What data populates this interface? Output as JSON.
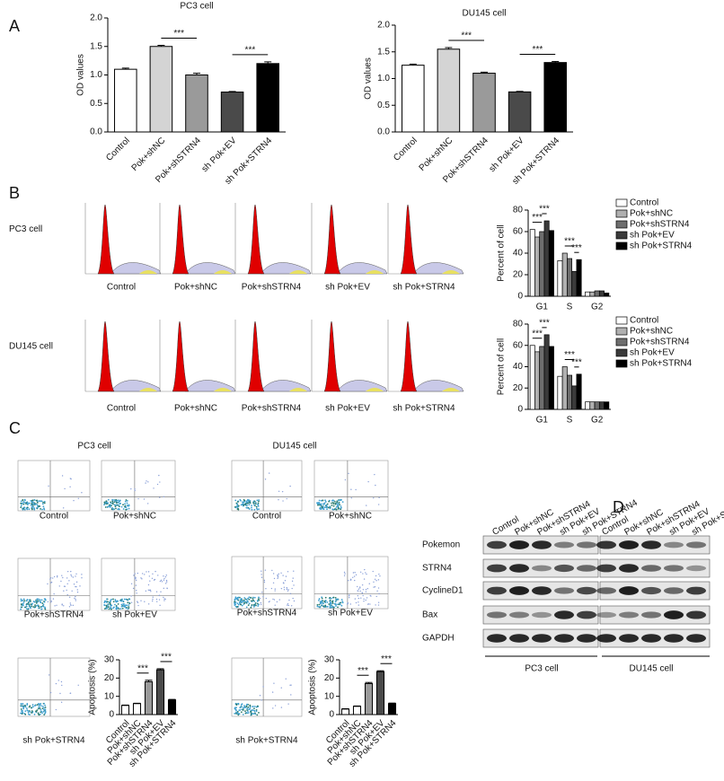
{
  "panels": [
    "A",
    "B",
    "C",
    "D"
  ],
  "chart_data": [
    {
      "type": "bar",
      "title": "PC3 cell",
      "y_label": "OD values",
      "categories": [
        "Control",
        "Pok+shNC",
        "Pok+shSTRN4",
        "sh Pok+EV",
        "sh Pok+STRN4"
      ],
      "values": [
        1.1,
        1.5,
        1.0,
        0.7,
        1.2
      ],
      "errors": [
        0.02,
        0.02,
        0.03,
        0.01,
        0.03
      ],
      "colors": [
        "#ffffff",
        "#d4d4d4",
        "#9a9a9a",
        "#4a4a4a",
        "#000000"
      ],
      "ylim": [
        0,
        2
      ],
      "yticks": [
        {
          "value": 0,
          "label": "0.0"
        },
        {
          "value": 0.5,
          "label": "0.5"
        },
        {
          "value": 1,
          "label": "1.0"
        },
        {
          "value": 1.5,
          "label": "1.5"
        },
        {
          "value": 2,
          "label": "2.0"
        }
      ],
      "annotations": [
        "***",
        "***"
      ]
    },
    {
      "type": "bar",
      "title": "DU145 cell",
      "y_label": "OD values",
      "categories": [
        "Control",
        "Pok+shNC",
        "Pok+shSTRN4",
        "sh Pok+EV",
        "sh Pok+STRN4"
      ],
      "values": [
        1.25,
        1.55,
        1.1,
        0.75,
        1.3
      ],
      "errors": [
        0.02,
        0.03,
        0.02,
        0.01,
        0.02
      ],
      "colors": [
        "#ffffff",
        "#d4d4d4",
        "#9a9a9a",
        "#4a4a4a",
        "#000000"
      ],
      "ylim": [
        0,
        2
      ],
      "yticks": [
        {
          "value": 0,
          "label": "0.0"
        },
        {
          "value": 0.5,
          "label": "0.5"
        },
        {
          "value": 1,
          "label": "1.0"
        },
        {
          "value": 1.5,
          "label": "1.5"
        },
        {
          "value": 2,
          "label": "2.0"
        }
      ],
      "annotations": [
        "***",
        "***"
      ]
    },
    {
      "type": "bar",
      "y_label": "Percent of cell",
      "categories": [
        "G1",
        "S",
        "G2"
      ],
      "series": [
        {
          "name": "Control",
          "color": "#ffffff",
          "values": [
            62,
            33,
            4
          ]
        },
        {
          "name": "Pok+shNC",
          "color": "#b0b0b0",
          "values": [
            55,
            40,
            4
          ]
        },
        {
          "name": "Pok+shSTRN4",
          "color": "#6e6e6e",
          "values": [
            60,
            35,
            5
          ]
        },
        {
          "name": "sh Pok+EV",
          "color": "#3a3a3a",
          "values": [
            70,
            23,
            5
          ]
        },
        {
          "name": "sh Pok+STRN4",
          "color": "#000000",
          "values": [
            61,
            34,
            3
          ]
        }
      ],
      "ylim": [
        0,
        80
      ],
      "yticks": [
        0,
        20,
        40,
        60,
        80
      ],
      "legend": "right",
      "annotations": [
        "***",
        "***",
        "***",
        "***"
      ]
    },
    {
      "type": "bar",
      "y_label": "Percent of cell",
      "categories": [
        "G1",
        "S",
        "G2"
      ],
      "series": [
        {
          "name": "Control",
          "color": "#ffffff",
          "values": [
            60,
            31,
            7
          ]
        },
        {
          "name": "Pok+shNC",
          "color": "#b0b0b0",
          "values": [
            54,
            40,
            7
          ]
        },
        {
          "name": "Pok+shSTRN4",
          "color": "#6e6e6e",
          "values": [
            59,
            32,
            7
          ]
        },
        {
          "name": "sh Pok+EV",
          "color": "#3a3a3a",
          "values": [
            70,
            22,
            7
          ]
        },
        {
          "name": "sh Pok+STRN4",
          "color": "#000000",
          "values": [
            59,
            33,
            7
          ]
        }
      ],
      "ylim": [
        0,
        80
      ],
      "yticks": [
        0,
        20,
        40,
        60,
        80
      ],
      "legend": "right",
      "annotations": [
        "***",
        "***",
        "***",
        "***"
      ]
    },
    {
      "type": "bar",
      "y_label": "Apoptosis (%)",
      "categories": [
        "Control",
        "Pok+shNC",
        "Pok+shSTRN4",
        "sh Pok+EV",
        "sh Pok+STRN4"
      ],
      "values": [
        5,
        6,
        18,
        24.5,
        8
      ],
      "errors": [
        0.2,
        0.2,
        0.8,
        0.6,
        0.3
      ],
      "colors": [
        "#ffffff",
        "#ffffff",
        "#9a9a9a",
        "#4a4a4a",
        "#000000"
      ],
      "ylim": [
        0,
        30
      ],
      "yticks": [
        0,
        10,
        20,
        30
      ],
      "annotations": [
        "***",
        "***"
      ]
    },
    {
      "type": "bar",
      "y_label": "Apoptosis (%)",
      "categories": [
        "Control",
        "Pok+shNC",
        "Pok+shSTRN4",
        "sh Pok+EV",
        "sh Pok+STRN4"
      ],
      "values": [
        3,
        4.5,
        17,
        23.5,
        6
      ],
      "errors": [
        0.2,
        0.2,
        0.6,
        0.5,
        0.3
      ],
      "colors": [
        "#ffffff",
        "#ffffff",
        "#9a9a9a",
        "#4a4a4a",
        "#000000"
      ],
      "ylim": [
        0,
        30
      ],
      "yticks": [
        0,
        10,
        20,
        30
      ],
      "annotations": [
        "***",
        "***"
      ]
    }
  ],
  "cell_cycle_histograms": {
    "rows": [
      "PC3 cell",
      "DU145 cell"
    ],
    "samples": [
      "Control",
      "Pok+shNC",
      "Pok+shSTRN4",
      "sh Pok+EV",
      "sh Pok+STRN4"
    ]
  },
  "apoptosis_plots": {
    "groups": [
      "PC3 cell",
      "DU145 cell"
    ],
    "samples": [
      "Control",
      "Pok+shNC",
      "Pok+shSTRN4",
      "sh Pok+EV",
      "sh Pok+STRN4"
    ]
  },
  "western_blot": {
    "lanes": [
      "Control",
      "Pok+shNC",
      "Pok+shSTRN4",
      "sh Pok+EV",
      "sh Pok+STRN4"
    ],
    "proteins": [
      "Pokemon",
      "STRN4",
      "CyclineD1",
      "Bax",
      "GAPDH"
    ],
    "cell_lines": [
      "PC3 cell",
      "DU145 cell"
    ]
  }
}
